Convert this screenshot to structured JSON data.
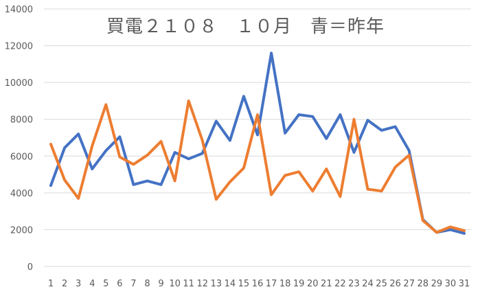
{
  "chart_data": {
    "type": "line",
    "title": "買電２１０８　１０月　青＝昨年",
    "categories": [
      "1",
      "2",
      "3",
      "4",
      "5",
      "6",
      "7",
      "8",
      "9",
      "10",
      "11",
      "12",
      "13",
      "14",
      "15",
      "16",
      "17",
      "18",
      "19",
      "20",
      "21",
      "22",
      "23",
      "24",
      "25",
      "26",
      "27",
      "28",
      "29",
      "30",
      "31"
    ],
    "ylim": [
      0,
      14000
    ],
    "yticks": [
      0,
      2000,
      4000,
      6000,
      8000,
      10000,
      12000,
      14000
    ],
    "grid": true,
    "series": [
      {
        "color": "#4472C4",
        "values": [
          4400,
          6450,
          7200,
          5300,
          6300,
          7050,
          4450,
          4650,
          4450,
          6200,
          5850,
          6150,
          7900,
          6850,
          9250,
          7150,
          11600,
          7250,
          8250,
          8150,
          6950,
          8250,
          6200,
          7950,
          7400,
          7600,
          6300,
          2550,
          1850,
          2000,
          1800
        ]
      },
      {
        "color": "#ED7D31",
        "values": [
          6650,
          4700,
          3700,
          6550,
          8800,
          5950,
          5550,
          6050,
          6800,
          4650,
          9000,
          6850,
          3650,
          4600,
          5350,
          8250,
          3900,
          4950,
          5150,
          4100,
          5300,
          3800,
          8000,
          4200,
          4100,
          5400,
          6050,
          2500,
          1850,
          2150,
          1950
        ]
      }
    ]
  }
}
